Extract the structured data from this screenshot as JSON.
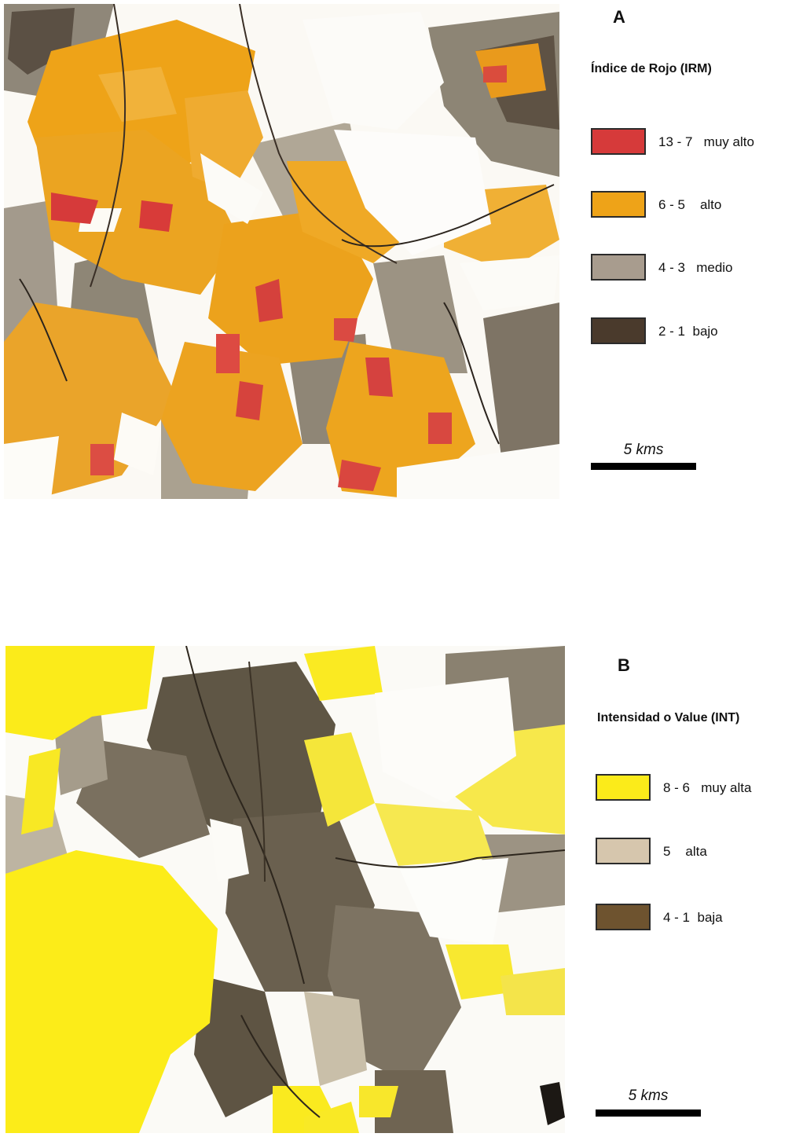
{
  "panel_a": {
    "letter": "A",
    "title": "Índice de Rojo (IRM)",
    "legend": [
      {
        "range": "13 - 7",
        "label": "muy alto",
        "color": "#d63a3a"
      },
      {
        "range": "6 - 5",
        "label": "alto",
        "color": "#eea318"
      },
      {
        "range": "4 - 3",
        "label": "medio",
        "color": "#a89c8e"
      },
      {
        "range": "2 - 1",
        "label": "bajo",
        "color": "#4a3a2c"
      }
    ],
    "scale_label": "5 kms"
  },
  "panel_b": {
    "letter": "B",
    "title": "Intensidad  o Value (INT)",
    "legend": [
      {
        "range": "8 - 6",
        "label": "muy alta",
        "color": "#fbeb1a"
      },
      {
        "range": "5",
        "label": "alta",
        "color": "#d6c6ad"
      },
      {
        "range": "4 - 1",
        "label": "baja",
        "color": "#6e532f"
      }
    ],
    "scale_label": "5 kms"
  }
}
